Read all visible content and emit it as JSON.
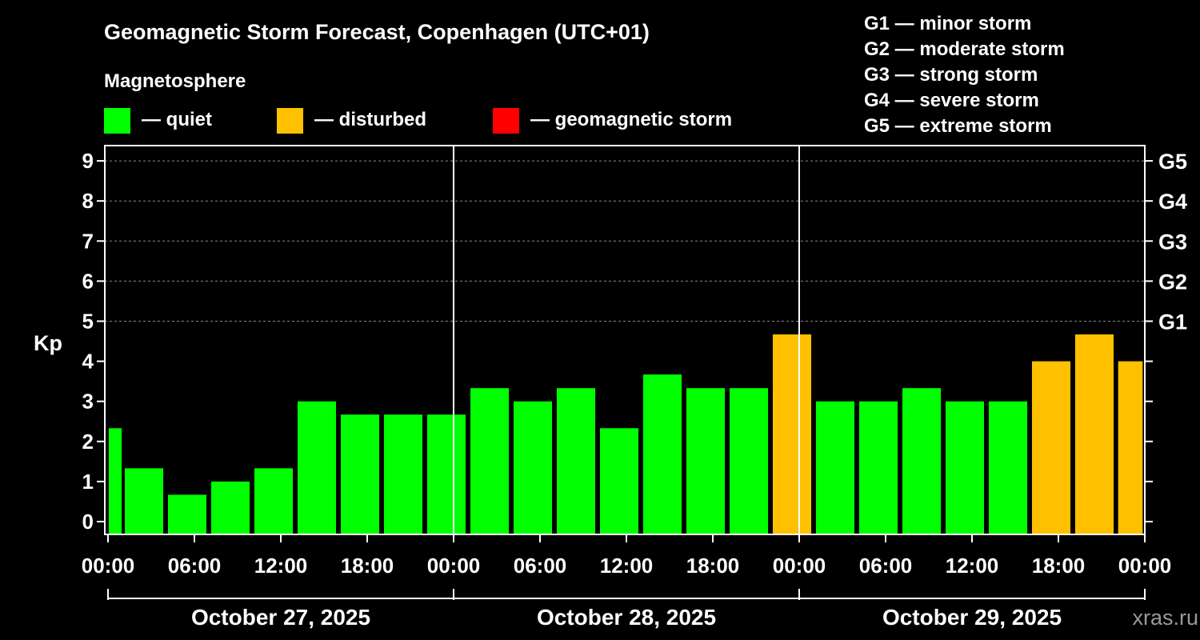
{
  "chart_data": {
    "type": "bar",
    "title": "Geomagnetic Storm Forecast, Copenhagen (UTC+01)",
    "ylabel": "Kp",
    "ylim": [
      -0.3,
      9.4
    ],
    "yticks": [
      "0",
      "1",
      "2",
      "3",
      "4",
      "5",
      "6",
      "7",
      "8",
      "9"
    ],
    "storm_levels": [
      {
        "label": "G1",
        "kp": 5
      },
      {
        "label": "G2",
        "kp": 6
      },
      {
        "label": "G3",
        "kp": 7
      },
      {
        "label": "G4",
        "kp": 8
      },
      {
        "label": "G5",
        "kp": 9
      }
    ],
    "legend": {
      "title": "Magnetosphere",
      "items": [
        {
          "label": "— quiet",
          "color": "#00ff00"
        },
        {
          "label": "— disturbed",
          "color": "#ffc000"
        },
        {
          "label": "— geomagnetic storm",
          "color": "#ff0000"
        }
      ]
    },
    "scale_legend": [
      "G1 — minor storm",
      "G2 — moderate storm",
      "G3 — strong storm",
      "G4 — severe storm",
      "G5 — extreme storm"
    ],
    "x_range_hours": [
      0,
      72
    ],
    "time_ticks": [
      {
        "hour": 0,
        "label": "00:00"
      },
      {
        "hour": 6,
        "label": "06:00"
      },
      {
        "hour": 12,
        "label": "12:00"
      },
      {
        "hour": 18,
        "label": "18:00"
      },
      {
        "hour": 24,
        "label": "00:00"
      },
      {
        "hour": 30,
        "label": "06:00"
      },
      {
        "hour": 36,
        "label": "12:00"
      },
      {
        "hour": 42,
        "label": "18:00"
      },
      {
        "hour": 48,
        "label": "00:00"
      },
      {
        "hour": 54,
        "label": "06:00"
      },
      {
        "hour": 60,
        "label": "12:00"
      },
      {
        "hour": 66,
        "label": "18:00"
      },
      {
        "hour": 72,
        "label": "00:00"
      }
    ],
    "day_separators_hours": [
      24,
      48
    ],
    "days": [
      {
        "label": "October 27, 2025",
        "start_hour": 0,
        "end_hour": 24
      },
      {
        "label": "October 28, 2025",
        "start_hour": 24,
        "end_hour": 48
      },
      {
        "label": "October 29, 2025",
        "start_hour": 48,
        "end_hour": 72
      }
    ],
    "bar_width_hours": 2.67,
    "bars": [
      {
        "center_hour": 0.5,
        "width_hours": 0.9,
        "value": 2.33,
        "status": "quiet"
      },
      {
        "center_hour": 2.5,
        "value": 1.33,
        "status": "quiet"
      },
      {
        "center_hour": 5.5,
        "value": 0.67,
        "status": "quiet"
      },
      {
        "center_hour": 8.5,
        "value": 1.0,
        "status": "quiet"
      },
      {
        "center_hour": 11.5,
        "value": 1.33,
        "status": "quiet"
      },
      {
        "center_hour": 14.5,
        "value": 3.0,
        "status": "quiet"
      },
      {
        "center_hour": 17.5,
        "value": 2.67,
        "status": "quiet"
      },
      {
        "center_hour": 20.5,
        "value": 2.67,
        "status": "quiet"
      },
      {
        "center_hour": 23.5,
        "value": 2.67,
        "status": "quiet"
      },
      {
        "center_hour": 26.5,
        "value": 3.33,
        "status": "quiet"
      },
      {
        "center_hour": 29.5,
        "value": 3.0,
        "status": "quiet"
      },
      {
        "center_hour": 32.5,
        "value": 3.33,
        "status": "quiet"
      },
      {
        "center_hour": 35.5,
        "value": 2.33,
        "status": "quiet"
      },
      {
        "center_hour": 38.5,
        "value": 3.67,
        "status": "quiet"
      },
      {
        "center_hour": 41.5,
        "value": 3.33,
        "status": "quiet"
      },
      {
        "center_hour": 44.5,
        "value": 3.33,
        "status": "quiet"
      },
      {
        "center_hour": 47.5,
        "value": 4.67,
        "status": "disturbed"
      },
      {
        "center_hour": 50.5,
        "value": 3.0,
        "status": "quiet"
      },
      {
        "center_hour": 53.5,
        "value": 3.0,
        "status": "quiet"
      },
      {
        "center_hour": 56.5,
        "value": 3.33,
        "status": "quiet"
      },
      {
        "center_hour": 59.5,
        "value": 3.0,
        "status": "quiet"
      },
      {
        "center_hour": 62.5,
        "value": 3.0,
        "status": "quiet"
      },
      {
        "center_hour": 65.5,
        "value": 4.0,
        "status": "disturbed"
      },
      {
        "center_hour": 68.5,
        "value": 4.67,
        "status": "disturbed"
      },
      {
        "center_hour": 71.0,
        "width_hours": 1.7,
        "value": 4.0,
        "status": "disturbed"
      }
    ],
    "status_colors": {
      "quiet": "#00ff00",
      "disturbed": "#ffc000",
      "storm": "#ff0000"
    }
  },
  "watermark": "xras.ru"
}
